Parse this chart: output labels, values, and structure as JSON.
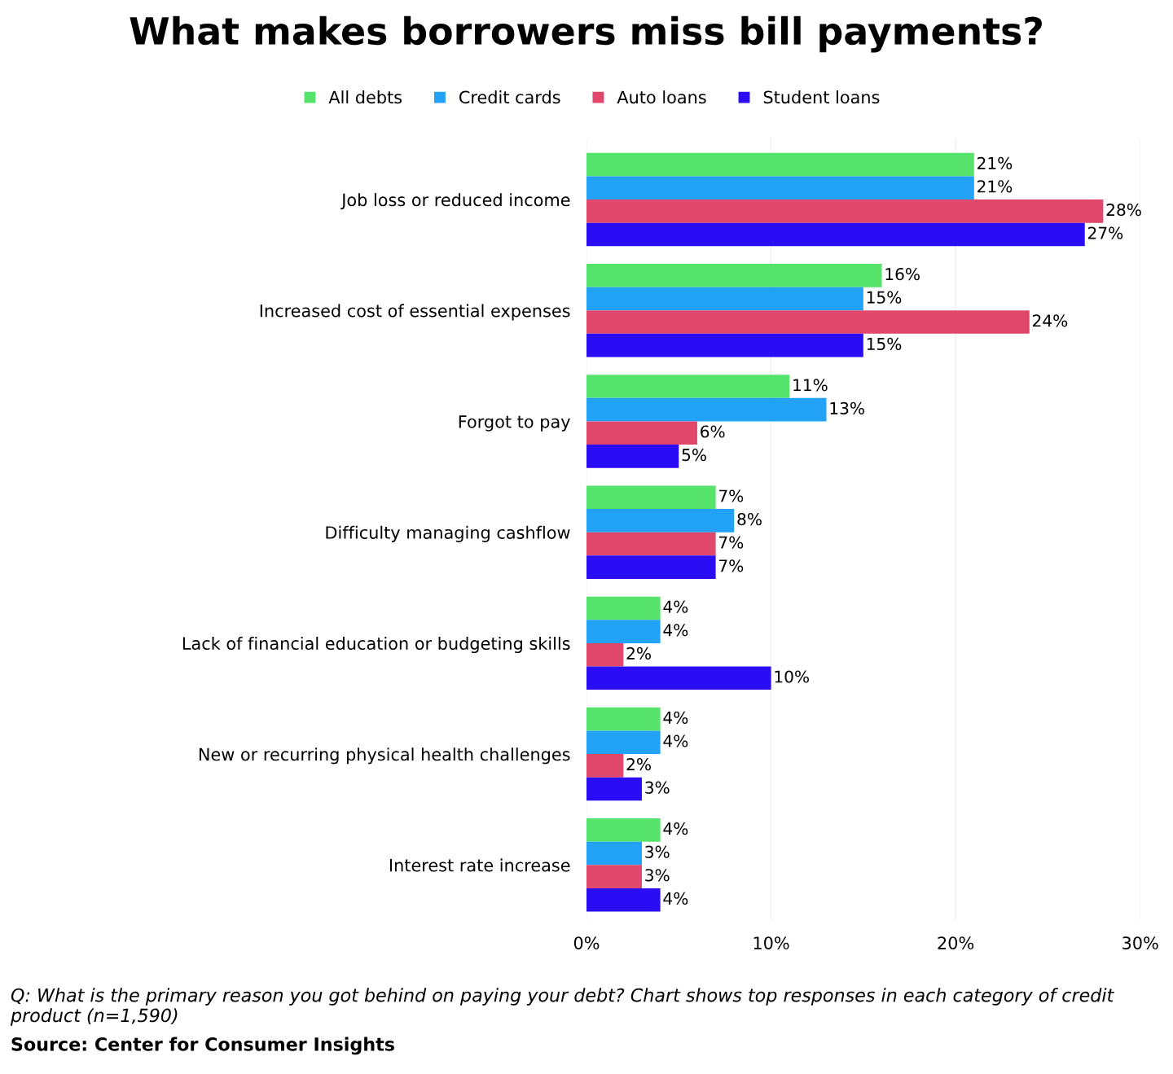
{
  "chart_data": {
    "type": "bar",
    "orientation": "horizontal",
    "title": "What makes borrowers miss bill payments?",
    "categories": [
      "Job loss or reduced income",
      "Increased cost of essential expenses",
      "Forgot to pay",
      "Difficulty managing cashflow",
      "Lack of financial education or budgeting skills",
      "New or recurring physical health challenges",
      "Interest rate increase"
    ],
    "series": [
      {
        "name": "All debts",
        "color": "#56e36c",
        "values": [
          21,
          16,
          11,
          7,
          4,
          4,
          4
        ],
        "value_labels": [
          "21%",
          "16%",
          "11%",
          "7%",
          "4%",
          "4%",
          "4%"
        ]
      },
      {
        "name": "Credit cards",
        "color": "#22a2f6",
        "values": [
          21,
          15,
          13,
          8,
          4,
          4,
          3
        ],
        "value_labels": [
          "21%",
          "15%",
          "13%",
          "8%",
          "4%",
          "4%",
          "3%"
        ]
      },
      {
        "name": "Auto loans",
        "color": "#e0476b",
        "values": [
          28,
          24,
          6,
          7,
          2,
          2,
          3
        ],
        "value_labels": [
          "28%",
          "24%",
          "6%",
          "7%",
          "2%",
          "2%",
          "3%"
        ]
      },
      {
        "name": "Student loans",
        "color": "#2a0cf5",
        "values": [
          27,
          15,
          5,
          7,
          10,
          3,
          4
        ],
        "value_labels": [
          "27%",
          "15%",
          "5%",
          "7%",
          "10%",
          "3%",
          "4%"
        ]
      }
    ],
    "xlim": [
      0,
      30
    ],
    "xticks": [
      {
        "value": 0,
        "label": "0%"
      },
      {
        "value": 10,
        "label": "10%"
      },
      {
        "value": 20,
        "label": "20%"
      },
      {
        "value": 30,
        "label": "30%"
      }
    ],
    "grid": "x",
    "legend": "top",
    "marker": "square",
    "annotations": [
      "Q: What is the primary reason you got behind on paying your debt? Chart shows top responses in each category of credit product (n=1,590)",
      "Source: Center for Consumer Insights"
    ]
  }
}
